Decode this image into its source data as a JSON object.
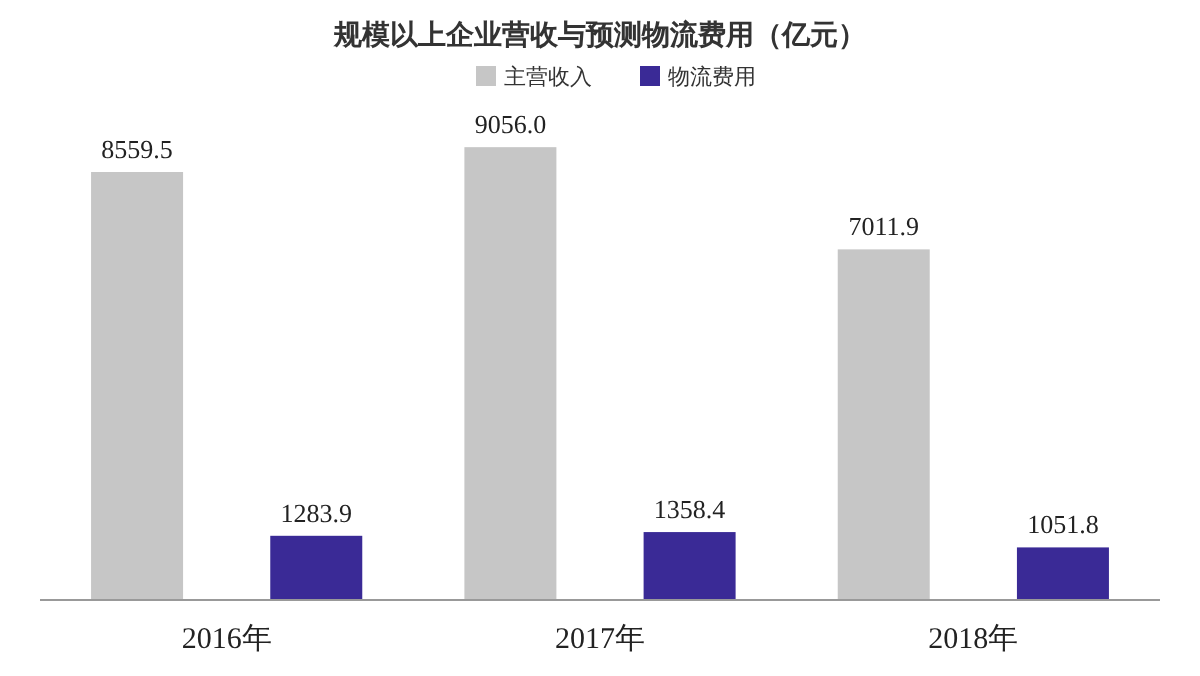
{
  "chart_data": {
    "type": "bar",
    "title": "规模以上企业营收与预测物流费用（亿元）",
    "categories": [
      "2016年",
      "2017年",
      "2018年"
    ],
    "series": [
      {
        "name": "主营收入",
        "color": "#c6c6c6",
        "values": [
          8559.5,
          9056.0,
          7011.9
        ],
        "value_labels": [
          "8559.5",
          "9056.0",
          "7011.9"
        ]
      },
      {
        "name": "物流费用",
        "color": "#3a2a96",
        "values": [
          1283.9,
          1358.4,
          1051.8
        ],
        "value_labels": [
          "1283.9",
          "1358.4",
          "1051.8"
        ]
      }
    ],
    "legend": "top"
  }
}
